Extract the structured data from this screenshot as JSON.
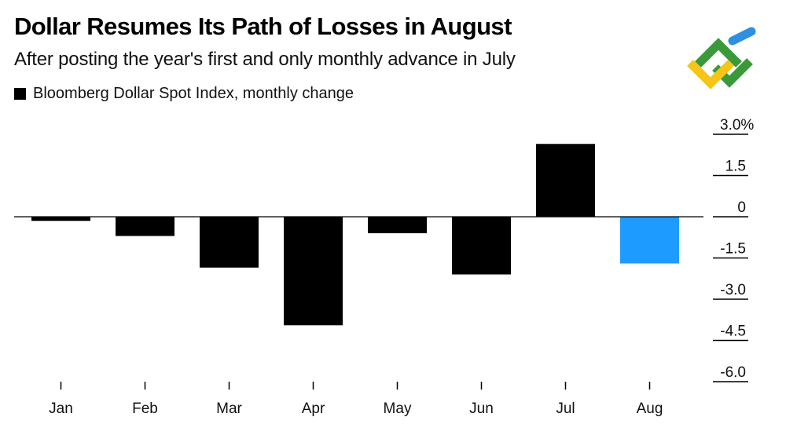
{
  "header": {
    "title": "Dollar Resumes Its Path of Losses in August",
    "subtitle": "After posting the year's first and only monthly advance in July"
  },
  "legend": {
    "label": "Bloomberg Dollar Spot Index, monthly change"
  },
  "logo": {
    "icon": "brand-logo-icon"
  },
  "colors": {
    "bar": "#000000",
    "highlight": "#1e9bff",
    "tick": "#000000",
    "logo_green": "#3a9a3a",
    "logo_yellow": "#f5c518",
    "logo_blue": "#2f8fe0"
  },
  "chart_data": {
    "type": "bar",
    "title": "Dollar Resumes Its Path of Losses in August",
    "subtitle": "After posting the year's first and only monthly advance in July",
    "legend": [
      "Bloomberg Dollar Spot Index, monthly change"
    ],
    "categories": [
      "Jan",
      "Feb",
      "Mar",
      "Apr",
      "May",
      "Jun",
      "Jul",
      "Aug"
    ],
    "values": [
      -0.15,
      -0.7,
      -1.85,
      -3.95,
      -0.6,
      -2.1,
      2.65,
      -1.7
    ],
    "highlight_index": 7,
    "ylim": [
      -6.0,
      3.0
    ],
    "yticks": [
      3.0,
      1.5,
      0,
      -1.5,
      -3.0,
      -4.5,
      -6.0
    ],
    "ytick_labels": [
      "3.0%",
      "1.5",
      "0",
      "-1.5",
      "-3.0",
      "-4.5",
      "-6.0"
    ],
    "xlabel": "",
    "ylabel": "",
    "grid": false
  }
}
